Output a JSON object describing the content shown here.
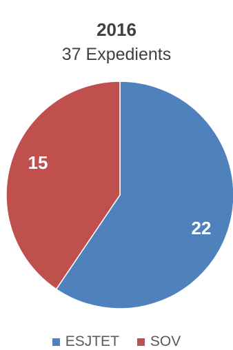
{
  "chart_data": {
    "type": "pie",
    "title": "2016",
    "subtitle": "37 Expedients",
    "slices": [
      {
        "label": "ESJTET",
        "value": 22,
        "color": "#4F81BD"
      },
      {
        "label": "SOV",
        "value": 15,
        "color": "#C0504D"
      }
    ],
    "legend_placement": "bottom",
    "data_labels": true
  }
}
